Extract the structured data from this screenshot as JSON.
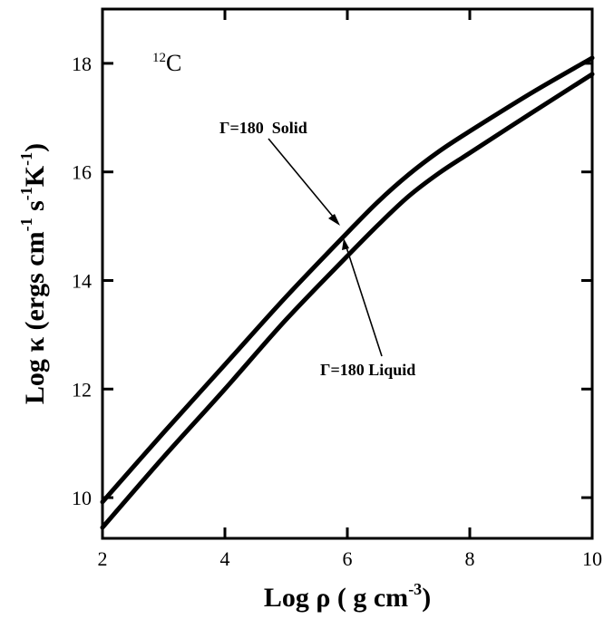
{
  "chart_data": {
    "type": "line",
    "xlabel": "Log ρ ( g cm",
    "xlabel_sup": "-3",
    "xlabel_end": ")",
    "ylabel": {
      "prefix": "Log κ (ergs cm",
      "sup1": "-1",
      "mid": " s",
      "sup2": "-1",
      "k": "K",
      "sup3": "-1",
      "end": ")"
    },
    "xlim": [
      2,
      10
    ],
    "ylim": [
      9.25,
      19.0
    ],
    "x_ticks": [
      2,
      4,
      6,
      8,
      10
    ],
    "x_tick_labels": [
      "2",
      "4",
      "6",
      "8",
      "10"
    ],
    "y_ticks": [
      10,
      12,
      14,
      16,
      18
    ],
    "y_tick_labels": [
      "10",
      "12",
      "14",
      "16",
      "18"
    ],
    "grid": false,
    "isotope_label": {
      "mass": "12",
      "element": "C"
    },
    "series": [
      {
        "name": "Γ=180 Solid",
        "x": [
          2.0,
          3.0,
          4.0,
          5.0,
          6.0,
          6.5,
          7.0,
          7.5,
          8.0,
          9.0,
          10.0
        ],
        "y": [
          9.92,
          11.2,
          12.45,
          13.7,
          14.88,
          15.45,
          15.95,
          16.38,
          16.75,
          17.45,
          18.1
        ]
      },
      {
        "name": "Γ=180 Liquid",
        "x": [
          2.0,
          3.0,
          4.0,
          5.0,
          6.0,
          6.5,
          7.0,
          7.5,
          8.0,
          9.0,
          10.0
        ],
        "y": [
          9.45,
          10.75,
          12.0,
          13.28,
          14.45,
          15.02,
          15.55,
          15.98,
          16.35,
          17.08,
          17.8
        ]
      }
    ],
    "annotations": [
      {
        "text": "Γ=180  Solid",
        "series": "Γ=180 Solid",
        "points_at_x": 6.0
      },
      {
        "text": "Γ=180 Liquid",
        "series": "Γ=180 Liquid",
        "points_at_x": 6.15
      }
    ]
  }
}
